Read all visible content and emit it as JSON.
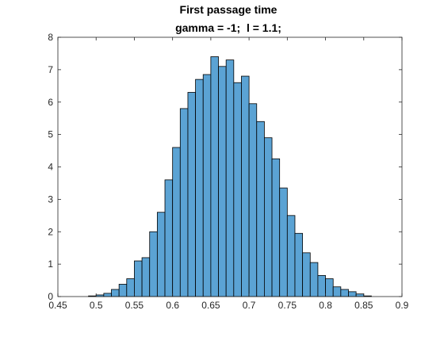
{
  "chart_data": {
    "type": "bar",
    "title": "First passage time",
    "subtitle": "gamma = -1;  l = 1.1;",
    "xlabel": "",
    "ylabel": "",
    "xlim": [
      0.45,
      0.9
    ],
    "ylim": [
      0,
      8
    ],
    "xticks": [
      0.45,
      0.5,
      0.55,
      0.6,
      0.65,
      0.7,
      0.75,
      0.8,
      0.85,
      0.9
    ],
    "xtick_labels": [
      "0.45",
      "0.5",
      "0.55",
      "0.6",
      "0.65",
      "0.7",
      "0.75",
      "0.8",
      "0.85",
      "0.9"
    ],
    "yticks": [
      0,
      1,
      2,
      3,
      4,
      5,
      6,
      7,
      8
    ],
    "ytick_labels": [
      "0",
      "1",
      "2",
      "3",
      "4",
      "5",
      "6",
      "7",
      "8"
    ],
    "grid": false,
    "legend": "none",
    "bin_width": 0.01,
    "bins": [
      {
        "x0": 0.49,
        "value": 0.02
      },
      {
        "x0": 0.5,
        "value": 0.05
      },
      {
        "x0": 0.51,
        "value": 0.1
      },
      {
        "x0": 0.52,
        "value": 0.22
      },
      {
        "x0": 0.53,
        "value": 0.38
      },
      {
        "x0": 0.54,
        "value": 0.55
      },
      {
        "x0": 0.55,
        "value": 1.1
      },
      {
        "x0": 0.56,
        "value": 1.2
      },
      {
        "x0": 0.57,
        "value": 2.0
      },
      {
        "x0": 0.58,
        "value": 2.6
      },
      {
        "x0": 0.59,
        "value": 3.6
      },
      {
        "x0": 0.6,
        "value": 4.6
      },
      {
        "x0": 0.61,
        "value": 5.8
      },
      {
        "x0": 0.62,
        "value": 6.3
      },
      {
        "x0": 0.63,
        "value": 6.7
      },
      {
        "x0": 0.64,
        "value": 6.85
      },
      {
        "x0": 0.65,
        "value": 7.4
      },
      {
        "x0": 0.66,
        "value": 7.1
      },
      {
        "x0": 0.67,
        "value": 7.3
      },
      {
        "x0": 0.68,
        "value": 6.6
      },
      {
        "x0": 0.69,
        "value": 6.8
      },
      {
        "x0": 0.7,
        "value": 5.95
      },
      {
        "x0": 0.71,
        "value": 5.4
      },
      {
        "x0": 0.72,
        "value": 4.9
      },
      {
        "x0": 0.73,
        "value": 4.25
      },
      {
        "x0": 0.74,
        "value": 3.35
      },
      {
        "x0": 0.75,
        "value": 2.5
      },
      {
        "x0": 0.76,
        "value": 1.95
      },
      {
        "x0": 0.77,
        "value": 1.35
      },
      {
        "x0": 0.78,
        "value": 1.05
      },
      {
        "x0": 0.79,
        "value": 0.65
      },
      {
        "x0": 0.8,
        "value": 0.55
      },
      {
        "x0": 0.81,
        "value": 0.3
      },
      {
        "x0": 0.82,
        "value": 0.22
      },
      {
        "x0": 0.83,
        "value": 0.15
      },
      {
        "x0": 0.84,
        "value": 0.08
      },
      {
        "x0": 0.85,
        "value": 0.02
      }
    ]
  },
  "colors": {
    "bar_fill": "#5ba3d4",
    "bar_edge": "#000000",
    "axis": "#262626",
    "background": "#ffffff"
  }
}
